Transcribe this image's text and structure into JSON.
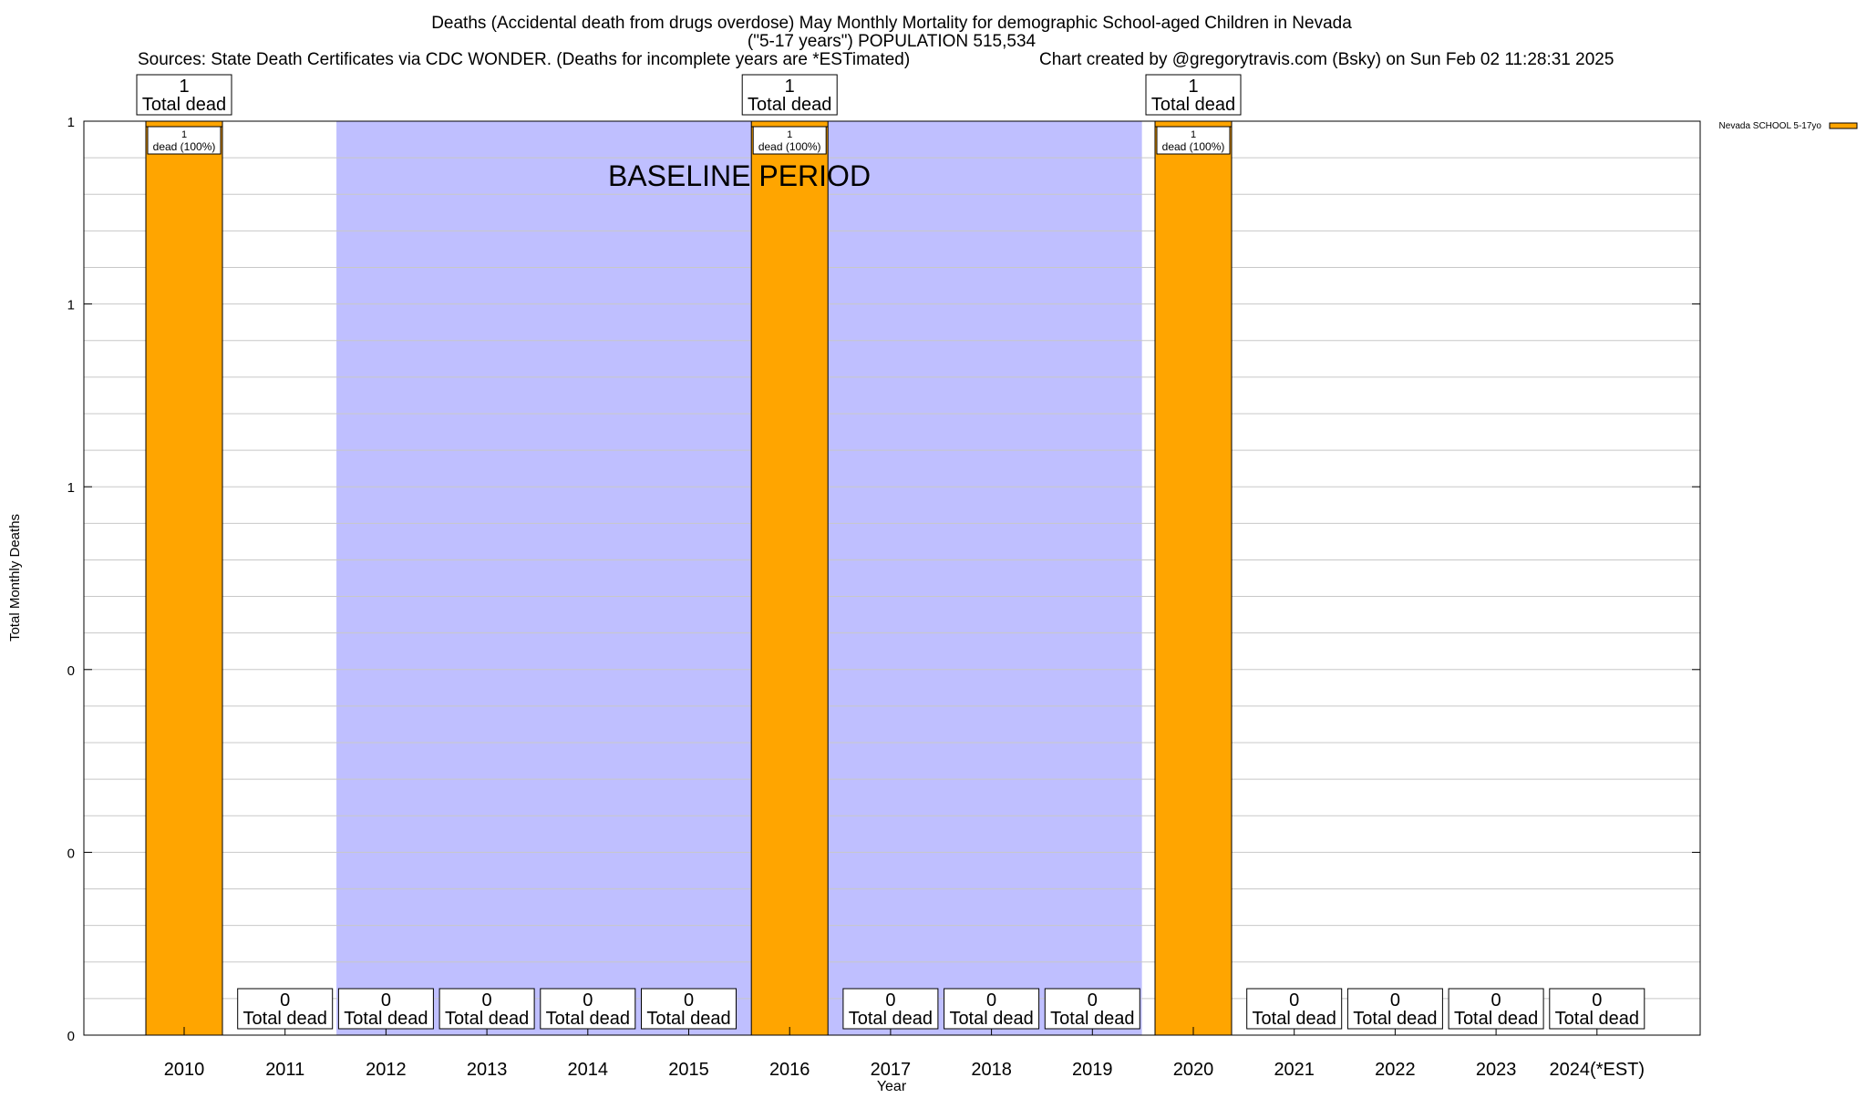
{
  "chart_data": {
    "type": "bar",
    "title_line1": "Deaths (Accidental death from drugs overdose) May Monthly Mortality for demographic School-aged Children in Nevada",
    "title_line2": "(\"5-17 years\") POPULATION 515,534",
    "sources": "Sources: State Death Certificates via CDC WONDER. (Deaths for incomplete years are *ESTimated)",
    "credit": "Chart created by @gregorytravis.com (Bsky) on Sun Feb 02 11:28:31 2025",
    "xlabel": "Year",
    "ylabel": "Total Monthly Deaths",
    "categories": [
      "2010",
      "2011",
      "2012",
      "2013",
      "2014",
      "2015",
      "2016",
      "2017",
      "2018",
      "2019",
      "2020",
      "2021",
      "2022",
      "2023",
      "2024(*EST)"
    ],
    "series": [
      {
        "name": "Nevada SCHOOL 5-17yo",
        "values": [
          1,
          0,
          0,
          0,
          0,
          0,
          1,
          0,
          0,
          0,
          1,
          0,
          0,
          0,
          0
        ],
        "color": "#ffa500"
      }
    ],
    "ylim": [
      0,
      1
    ],
    "y_tick_values": [
      0,
      0.2,
      0.4,
      0.6,
      0.8,
      1.0
    ],
    "y_tick_labels": [
      "0",
      "0",
      "0",
      "1",
      "1",
      "1"
    ],
    "grid": true,
    "legend_position": "top-right",
    "total_label_suffix": "Total dead",
    "share_label_suffix": "dead (100%)",
    "baseline": {
      "label": "BASELINE PERIOD",
      "start_index": 2,
      "end_index": 9,
      "color": "#bfbfff"
    }
  }
}
